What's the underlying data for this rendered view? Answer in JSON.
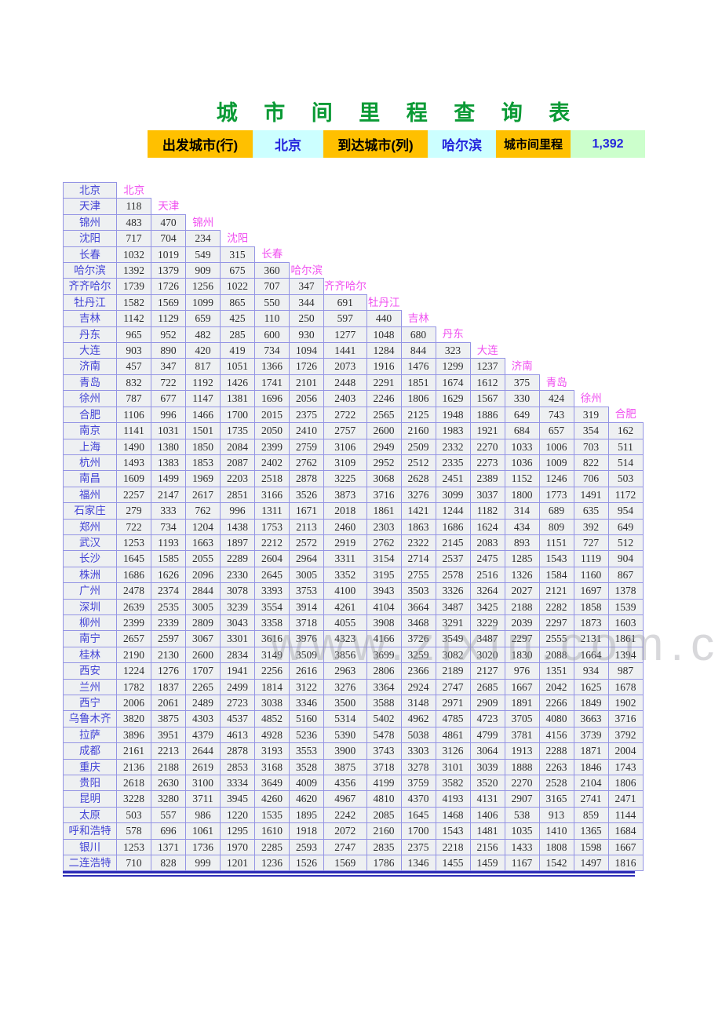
{
  "title": "城 市 间 里 程 查 询 表",
  "lookup_bar": {
    "from_label": "出发城市(行)",
    "from_value": "北京",
    "to_label": "到达城市(列)",
    "to_value": "哈尔滨",
    "result_label": "城市间里程",
    "result_value": "1,392"
  },
  "watermark": "www.zixin.com.c",
  "colors": {
    "title_green": "#0a9a35",
    "label_gold": "#ffc000",
    "input_cyan": "#ccffff",
    "result_green": "#ccffcc",
    "lookup_text_blue": "#2424dd",
    "grid_border": "#9494e4",
    "cell_fill": "#eef0f2",
    "city_text_blue": "#4343d6",
    "diagonal_magenta": "#f050f0",
    "bottom_rule_blue": "#2d2db6"
  },
  "table": {
    "diagonal_columns": [
      "北京",
      "天津",
      "锦州",
      "沈阳",
      "长春",
      "哈尔滨",
      "齐齐哈尔",
      "牡丹江",
      "吉林",
      "丹东",
      "大连",
      "济南",
      "青岛",
      "徐州",
      "合肥"
    ],
    "rows": [
      {
        "city": "北京",
        "values": []
      },
      {
        "city": "天津",
        "values": [
          118
        ]
      },
      {
        "city": "锦州",
        "values": [
          483,
          470
        ]
      },
      {
        "city": "沈阳",
        "values": [
          717,
          704,
          234
        ]
      },
      {
        "city": "长春",
        "values": [
          1032,
          1019,
          549,
          315
        ]
      },
      {
        "city": "哈尔滨",
        "values": [
          1392,
          1379,
          909,
          675,
          360
        ]
      },
      {
        "city": "齐齐哈尔",
        "values": [
          1739,
          1726,
          1256,
          1022,
          707,
          347
        ]
      },
      {
        "city": "牡丹江",
        "values": [
          1582,
          1569,
          1099,
          865,
          550,
          344,
          691
        ]
      },
      {
        "city": "吉林",
        "values": [
          1142,
          1129,
          659,
          425,
          110,
          250,
          597,
          440
        ]
      },
      {
        "city": "丹东",
        "values": [
          965,
          952,
          482,
          285,
          600,
          930,
          1277,
          1048,
          680
        ]
      },
      {
        "city": "大连",
        "values": [
          903,
          890,
          420,
          419,
          734,
          1094,
          1441,
          1284,
          844,
          323
        ]
      },
      {
        "city": "济南",
        "values": [
          457,
          347,
          817,
          1051,
          1366,
          1726,
          2073,
          1916,
          1476,
          1299,
          1237
        ]
      },
      {
        "city": "青岛",
        "values": [
          832,
          722,
          1192,
          1426,
          1741,
          2101,
          2448,
          2291,
          1851,
          1674,
          1612,
          375
        ]
      },
      {
        "city": "徐州",
        "values": [
          787,
          677,
          1147,
          1381,
          1696,
          2056,
          2403,
          2246,
          1806,
          1629,
          1567,
          330,
          424
        ]
      },
      {
        "city": "合肥",
        "values": [
          1106,
          996,
          1466,
          1700,
          2015,
          2375,
          2722,
          2565,
          2125,
          1948,
          1886,
          649,
          743,
          319
        ]
      },
      {
        "city": "南京",
        "values": [
          1141,
          1031,
          1501,
          1735,
          2050,
          2410,
          2757,
          2600,
          2160,
          1983,
          1921,
          684,
          657,
          354,
          162
        ]
      },
      {
        "city": "上海",
        "values": [
          1490,
          1380,
          1850,
          2084,
          2399,
          2759,
          3106,
          2949,
          2509,
          2332,
          2270,
          1033,
          1006,
          703,
          511
        ]
      },
      {
        "city": "杭州",
        "values": [
          1493,
          1383,
          1853,
          2087,
          2402,
          2762,
          3109,
          2952,
          2512,
          2335,
          2273,
          1036,
          1009,
          822,
          514
        ]
      },
      {
        "city": "南昌",
        "values": [
          1609,
          1499,
          1969,
          2203,
          2518,
          2878,
          3225,
          3068,
          2628,
          2451,
          2389,
          1152,
          1246,
          706,
          503
        ]
      },
      {
        "city": "福州",
        "values": [
          2257,
          2147,
          2617,
          2851,
          3166,
          3526,
          3873,
          3716,
          3276,
          3099,
          3037,
          1800,
          1773,
          1491,
          1172
        ]
      },
      {
        "city": "石家庄",
        "values": [
          279,
          333,
          762,
          996,
          1311,
          1671,
          2018,
          1861,
          1421,
          1244,
          1182,
          314,
          689,
          635,
          954
        ]
      },
      {
        "city": "郑州",
        "values": [
          722,
          734,
          1204,
          1438,
          1753,
          2113,
          2460,
          2303,
          1863,
          1686,
          1624,
          434,
          809,
          392,
          649
        ]
      },
      {
        "city": "武汉",
        "values": [
          1253,
          1193,
          1663,
          1897,
          2212,
          2572,
          2919,
          2762,
          2322,
          2145,
          2083,
          893,
          1151,
          727,
          512
        ]
      },
      {
        "city": "长沙",
        "values": [
          1645,
          1585,
          2055,
          2289,
          2604,
          2964,
          3311,
          3154,
          2714,
          2537,
          2475,
          1285,
          1543,
          1119,
          904
        ]
      },
      {
        "city": "株洲",
        "values": [
          1686,
          1626,
          2096,
          2330,
          2645,
          3005,
          3352,
          3195,
          2755,
          2578,
          2516,
          1326,
          1584,
          1160,
          867
        ]
      },
      {
        "city": "广州",
        "values": [
          2478,
          2374,
          2844,
          3078,
          3393,
          3753,
          4100,
          3943,
          3503,
          3326,
          3264,
          2027,
          2121,
          1697,
          1378
        ]
      },
      {
        "city": "深圳",
        "values": [
          2639,
          2535,
          3005,
          3239,
          3554,
          3914,
          4261,
          4104,
          3664,
          3487,
          3425,
          2188,
          2282,
          1858,
          1539
        ]
      },
      {
        "city": "柳州",
        "values": [
          2399,
          2339,
          2809,
          3043,
          3358,
          3718,
          4055,
          3908,
          3468,
          3291,
          3229,
          2039,
          2297,
          1873,
          1603
        ]
      },
      {
        "city": "南宁",
        "values": [
          2657,
          2597,
          3067,
          3301,
          3616,
          3976,
          4323,
          4166,
          3726,
          3549,
          3487,
          2297,
          2555,
          2131,
          1861
        ]
      },
      {
        "city": "桂林",
        "values": [
          2190,
          2130,
          2600,
          2834,
          3149,
          3509,
          3856,
          3699,
          3259,
          3082,
          3020,
          1830,
          2088,
          1664,
          1394
        ]
      },
      {
        "city": "西安",
        "values": [
          1224,
          1276,
          1707,
          1941,
          2256,
          2616,
          2963,
          2806,
          2366,
          2189,
          2127,
          976,
          1351,
          934,
          987
        ]
      },
      {
        "city": "兰州",
        "values": [
          1782,
          1837,
          2265,
          2499,
          1814,
          3122,
          3276,
          3364,
          2924,
          2747,
          2685,
          1667,
          2042,
          1625,
          1678
        ]
      },
      {
        "city": "西宁",
        "values": [
          2006,
          2061,
          2489,
          2723,
          3038,
          3346,
          3500,
          3588,
          3148,
          2971,
          2909,
          1891,
          2266,
          1849,
          1902
        ]
      },
      {
        "city": "乌鲁木齐",
        "values": [
          3820,
          3875,
          4303,
          4537,
          4852,
          5160,
          5314,
          5402,
          4962,
          4785,
          4723,
          3705,
          4080,
          3663,
          3716
        ]
      },
      {
        "city": "拉萨",
        "values": [
          3896,
          3951,
          4379,
          4613,
          4928,
          5236,
          5390,
          5478,
          5038,
          4861,
          4799,
          3781,
          4156,
          3739,
          3792
        ]
      },
      {
        "city": "成都",
        "values": [
          2161,
          2213,
          2644,
          2878,
          3193,
          3553,
          3900,
          3743,
          3303,
          3126,
          3064,
          1913,
          2288,
          1871,
          2004
        ]
      },
      {
        "city": "重庆",
        "values": [
          2136,
          2188,
          2619,
          2853,
          3168,
          3528,
          3875,
          3718,
          3278,
          3101,
          3039,
          1888,
          2263,
          1846,
          1743
        ]
      },
      {
        "city": "贵阳",
        "values": [
          2618,
          2630,
          3100,
          3334,
          3649,
          4009,
          4356,
          4199,
          3759,
          3582,
          3520,
          2270,
          2528,
          2104,
          1806
        ]
      },
      {
        "city": "昆明",
        "values": [
          3228,
          3280,
          3711,
          3945,
          4260,
          4620,
          4967,
          4810,
          4370,
          4193,
          4131,
          2907,
          3165,
          2741,
          2471
        ]
      },
      {
        "city": "太原",
        "values": [
          503,
          557,
          986,
          1220,
          1535,
          1895,
          2242,
          2085,
          1645,
          1468,
          1406,
          538,
          913,
          859,
          1144
        ]
      },
      {
        "city": "呼和浩特",
        "values": [
          578,
          696,
          1061,
          1295,
          1610,
          1918,
          2072,
          2160,
          1700,
          1543,
          1481,
          1035,
          1410,
          1365,
          1684
        ]
      },
      {
        "city": "银川",
        "values": [
          1253,
          1371,
          1736,
          1970,
          2285,
          2593,
          2747,
          2835,
          2375,
          2218,
          2156,
          1433,
          1808,
          1598,
          1667
        ]
      },
      {
        "city": "二连浩特",
        "values": [
          710,
          828,
          999,
          1201,
          1236,
          1526,
          1569,
          1786,
          1346,
          1455,
          1459,
          1167,
          1542,
          1497,
          1816
        ]
      }
    ]
  }
}
